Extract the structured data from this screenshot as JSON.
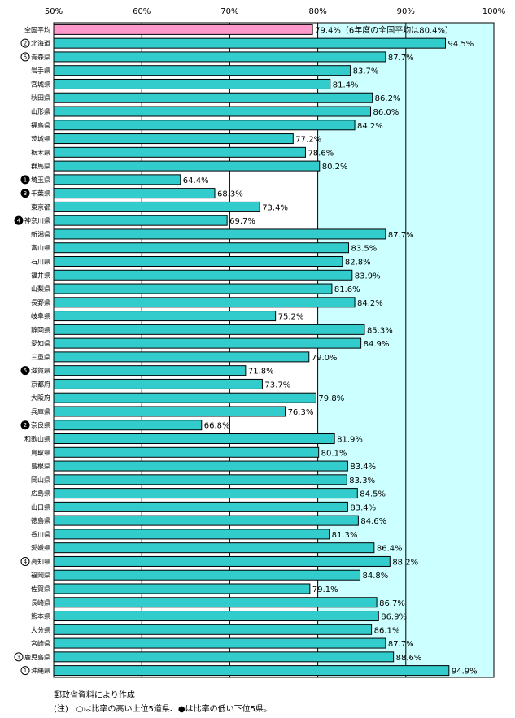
{
  "chart_data": {
    "type": "bar",
    "orientation": "horizontal",
    "xlim": [
      50,
      100
    ],
    "x_ticks": [
      "50%",
      "60%",
      "70%",
      "80%",
      "90%",
      "100%"
    ],
    "grid": true,
    "categories": [
      "全国平均",
      "北海道",
      "青森県",
      "岩手県",
      "宮城県",
      "秋田県",
      "山形県",
      "福島県",
      "茨城県",
      "栃木県",
      "群馬県",
      "埼玉県",
      "千葉県",
      "東京都",
      "神奈川県",
      "新潟県",
      "富山県",
      "石川県",
      "福井県",
      "山梨県",
      "長野県",
      "岐阜県",
      "静岡県",
      "愛知県",
      "三重県",
      "滋賀県",
      "京都府",
      "大阪府",
      "兵庫県",
      "奈良県",
      "和歌山県",
      "鳥取県",
      "島根県",
      "岡山県",
      "広島県",
      "山口県",
      "徳島県",
      "香川県",
      "愛媛県",
      "高知県",
      "福岡県",
      "佐賀県",
      "長崎県",
      "熊本県",
      "大分県",
      "宮崎県",
      "鹿児島県",
      "沖縄県"
    ],
    "values": [
      79.4,
      94.5,
      87.7,
      83.7,
      81.4,
      86.2,
      86.0,
      84.2,
      77.2,
      78.6,
      80.2,
      64.4,
      68.3,
      73.4,
      69.7,
      87.7,
      83.5,
      82.8,
      83.9,
      81.6,
      84.2,
      75.2,
      85.3,
      84.9,
      79.0,
      71.8,
      73.7,
      79.8,
      76.3,
      66.8,
      81.9,
      80.1,
      83.4,
      83.3,
      84.5,
      83.4,
      84.6,
      81.3,
      86.4,
      88.2,
      84.8,
      79.1,
      86.7,
      86.9,
      86.1,
      87.7,
      88.6,
      94.9
    ],
    "value_labels": [
      "79.4%（6年度の全国平均は80.4%）",
      "94.5%",
      "87.7%",
      "83.7%",
      "81.4%",
      "86.2%",
      "86.0%",
      "84.2%",
      "77.2%",
      "78.6%",
      "80.2%",
      "64.4%",
      "68.3%",
      "73.4%",
      "69.7%",
      "87.7%",
      "83.5%",
      "82.8%",
      "83.9%",
      "81.6%",
      "84.2%",
      "75.2%",
      "85.3%",
      "84.9%",
      "79.0%",
      "71.8%",
      "73.7%",
      "79.8%",
      "76.3%",
      "66.8%",
      "81.9%",
      "80.1%",
      "83.4%",
      "83.3%",
      "84.5%",
      "83.4%",
      "84.6%",
      "81.3%",
      "86.4%",
      "88.2%",
      "84.8%",
      "79.1%",
      "86.7%",
      "86.9%",
      "86.1%",
      "87.7%",
      "88.6%",
      "94.9%"
    ],
    "rank_marks": [
      {
        "category": "北海道",
        "rank": "2",
        "style": "open"
      },
      {
        "category": "青森県",
        "rank": "5",
        "style": "open"
      },
      {
        "category": "埼玉県",
        "rank": "1",
        "style": "filled"
      },
      {
        "category": "千葉県",
        "rank": "3",
        "style": "filled"
      },
      {
        "category": "神奈川県",
        "rank": "4",
        "style": "filled"
      },
      {
        "category": "滋賀県",
        "rank": "5",
        "style": "filled"
      },
      {
        "category": "奈良県",
        "rank": "2",
        "style": "filled"
      },
      {
        "category": "高知県",
        "rank": "4",
        "style": "open"
      },
      {
        "category": "鹿児島県",
        "rank": "3",
        "style": "open"
      },
      {
        "category": "沖縄県",
        "rank": "1",
        "style": "open"
      }
    ],
    "colors": {
      "highlight_bar": "#ff99cc",
      "bar": "#33cccc",
      "above_80_band": "#ccffff",
      "grid": "#000000"
    }
  },
  "notes": {
    "source": "郵政省資料により作成",
    "footnote": "(注)　○は比率の高い上位5道県、●は比率の低い下位5県。"
  }
}
